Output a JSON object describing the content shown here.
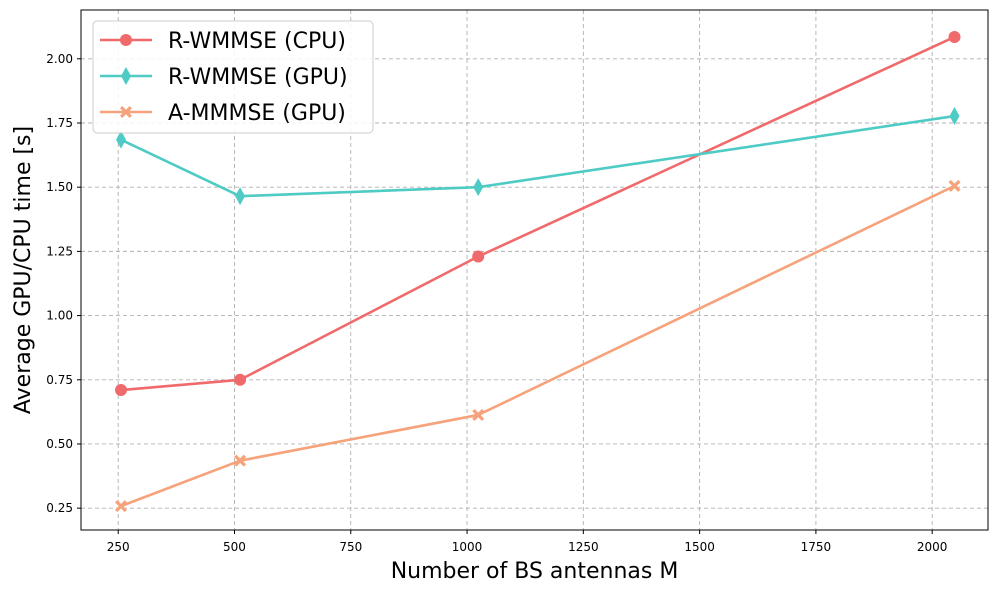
{
  "chart_data": {
    "type": "line",
    "title": "",
    "xlabel": "Number of BS antennas M",
    "ylabel": "Average GPU/CPU time [s]",
    "xlim": [
      170,
      2120
    ],
    "ylim": [
      0.165,
      2.19
    ],
    "xticks": [
      250,
      500,
      750,
      1000,
      1250,
      1500,
      1750,
      2000
    ],
    "yticks": [
      0.25,
      0.5,
      0.75,
      1.0,
      1.25,
      1.5,
      1.75,
      2.0
    ],
    "xtick_labels": [
      "250",
      "500",
      "750",
      "1000",
      "1250",
      "1500",
      "1750",
      "2000"
    ],
    "ytick_labels": [
      "0.25",
      "0.50",
      "0.75",
      "1.00",
      "1.25",
      "1.50",
      "1.75",
      "2.00"
    ],
    "grid": true,
    "legend_position": "top-left",
    "x": [
      256,
      512,
      1024,
      2048
    ],
    "series": [
      {
        "name": "R-WMMSE (CPU)",
        "values": [
          0.71,
          0.75,
          1.23,
          2.085
        ],
        "color": "#f0696b",
        "marker": "circle"
      },
      {
        "name": "R-WMMSE (GPU)",
        "values": [
          1.685,
          1.465,
          1.5,
          1.777
        ],
        "color": "#4ecbc4",
        "marker": "thin-diamond"
      },
      {
        "name": "A-MMMSE (GPU)",
        "values": [
          0.258,
          0.435,
          0.613,
          1.505
        ],
        "color": "#f6a27a",
        "marker": "x-filled"
      }
    ]
  }
}
